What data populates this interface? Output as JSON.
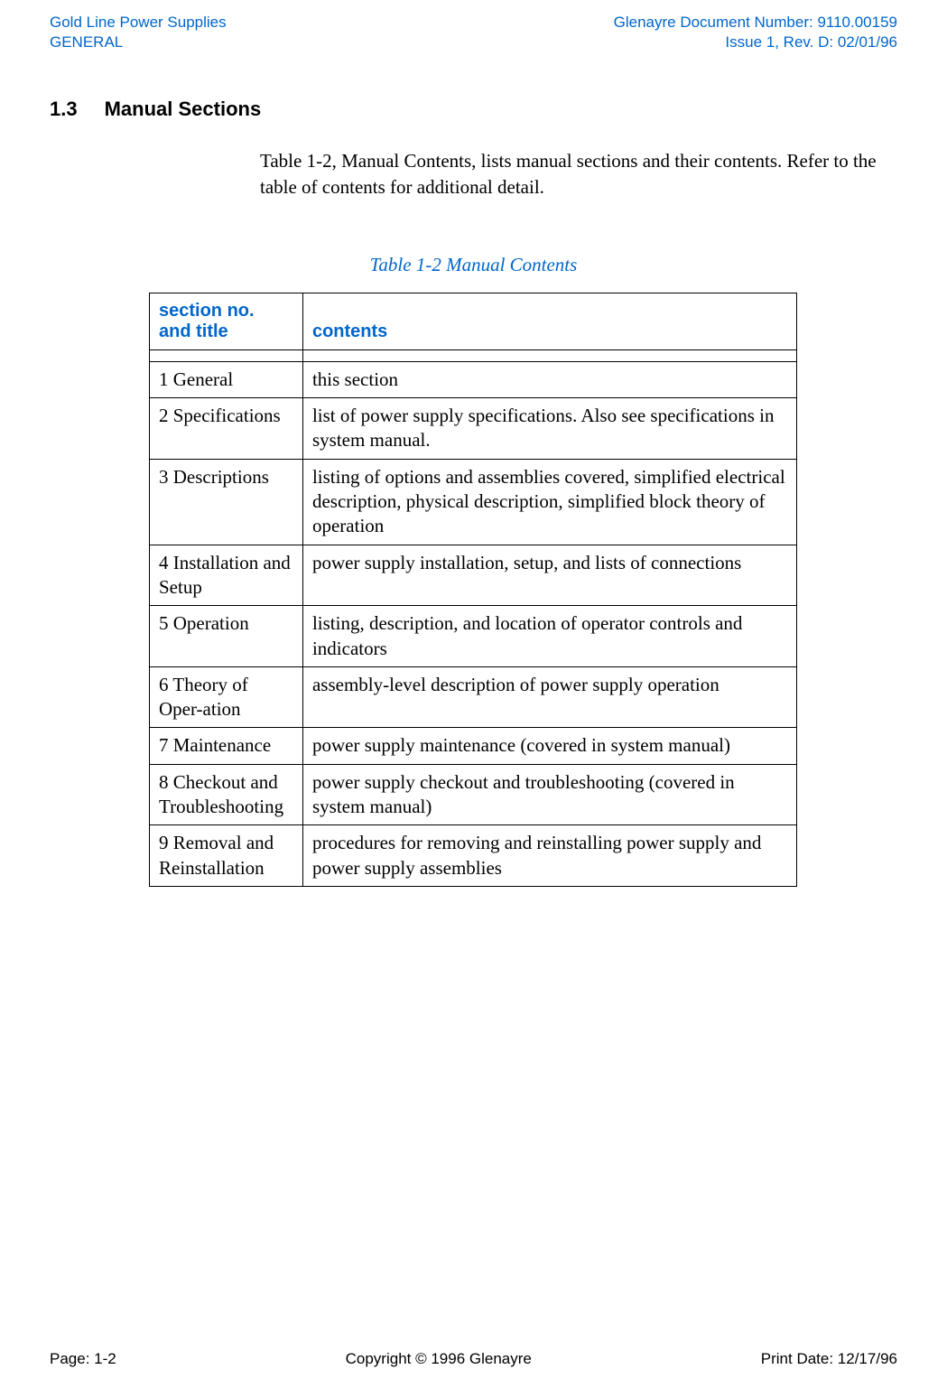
{
  "header": {
    "left_line1": "Gold Line Power Supplies",
    "left_line2": "GENERAL",
    "right_line1": "Glenayre Document Number: 9110.00159",
    "right_line2": "Issue 1, Rev. D: 02/01/96"
  },
  "section": {
    "number": "1.3",
    "title": "Manual Sections",
    "body": "Table 1-2, Manual Contents, lists manual sections and their contents. Refer to the table of contents for additional detail."
  },
  "table": {
    "caption": "Table 1-2  Manual Contents",
    "columns": {
      "col1_line1": "section no.",
      "col1_line2": "and title",
      "col2": "contents"
    },
    "rows": [
      {
        "section": "1 General",
        "contents": "this section"
      },
      {
        "section": "2 Specifications",
        "contents": "list of power supply specifications. Also see specifications in system manual."
      },
      {
        "section": " 3 Descriptions",
        "contents": "listing of options and assemblies covered, simplified electrical description, physical description, simplified block theory of operation"
      },
      {
        "section": "4 Installation and Setup",
        "contents": "power supply installation, setup, and lists of connections"
      },
      {
        "section": "5 Operation",
        "contents": "listing, description, and location of operator controls and indicators"
      },
      {
        "section": "6 Theory of Oper-ation",
        "contents": "assembly-level description of power supply operation"
      },
      {
        "section": "7 Maintenance",
        "contents": "power supply maintenance (covered in system manual)"
      },
      {
        "section": "8 Checkout and Troubleshooting",
        "contents": "power supply checkout and troubleshooting (covered in system manual)"
      },
      {
        "section": "9 Removal and Reinstallation",
        "contents": "procedures for removing and reinstalling power supply and power supply assemblies"
      }
    ]
  },
  "footer": {
    "left": "Page: 1-2",
    "center": "Copyright © 1996 Glenayre",
    "right": "Print Date: 12/17/96"
  },
  "colors": {
    "accent_blue": "#0066cc",
    "text_black": "#000000",
    "background": "#ffffff"
  }
}
